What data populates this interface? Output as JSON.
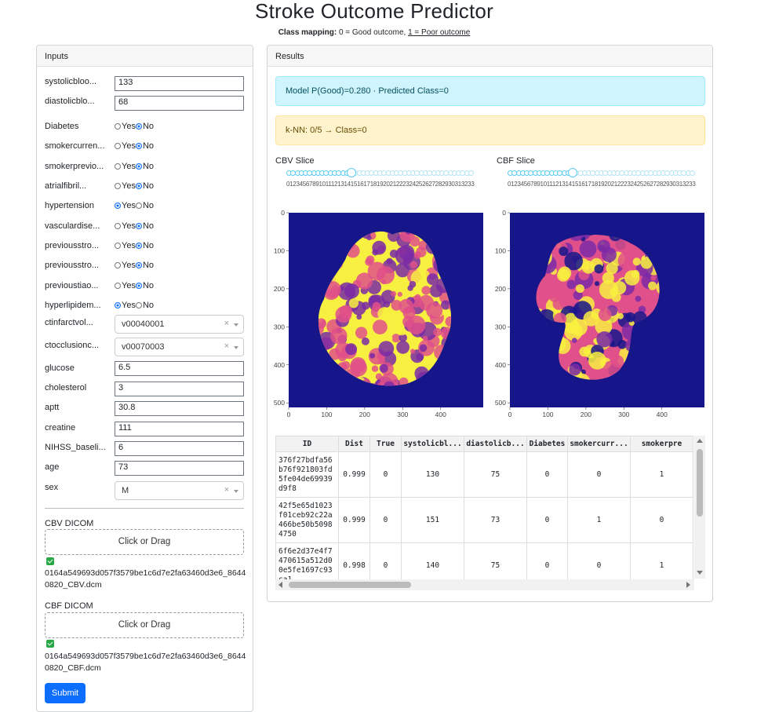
{
  "page": {
    "title": "Stroke Outcome Predictor",
    "mapping_bold": "Class mapping:",
    "mapping_normal": " 0 = Good outcome, ",
    "mapping_link": "1 = Poor outcome"
  },
  "inputs": {
    "header": "Inputs",
    "systolic": {
      "label": "systolicbloo...",
      "value": "133"
    },
    "diastolic": {
      "label": "diastolicblo...",
      "value": "68"
    },
    "radios": [
      {
        "label": "Diabetes",
        "selected": "No"
      },
      {
        "label": "smokercurren...",
        "selected": "No"
      },
      {
        "label": "smokerprevio...",
        "selected": "No"
      },
      {
        "label": "atrialfibril...",
        "selected": "No"
      },
      {
        "label": "hypertension",
        "selected": "Yes"
      },
      {
        "label": "vasculardise...",
        "selected": "No"
      },
      {
        "label": "previousstro...",
        "selected": "No"
      },
      {
        "label": "previousstro...",
        "selected": "No"
      },
      {
        "label": "previoustiao...",
        "selected": "No"
      },
      {
        "label": "hyperlipidem...",
        "selected": "Yes"
      }
    ],
    "radio_yes": "Yes",
    "radio_no": "No",
    "ctinfarct": {
      "label": "ctinfarctvol...",
      "value": "v00040001"
    },
    "ctocclusion": {
      "label": "ctocclusionc...",
      "value": "v00070003"
    },
    "glucose": {
      "label": "glucose",
      "value": "6.5"
    },
    "cholesterol": {
      "label": "cholesterol",
      "value": "3"
    },
    "aptt": {
      "label": "aptt",
      "value": "30.8"
    },
    "creatine": {
      "label": "creatine",
      "value": "111"
    },
    "nihss": {
      "label": "NIHSS_baseli...",
      "value": "6"
    },
    "age": {
      "label": "age",
      "value": "73"
    },
    "sex": {
      "label": "sex",
      "value": "M"
    },
    "clear_symbol": "×",
    "cbv_label": "CBV DICOM",
    "cbf_label": "CBF DICOM",
    "drop_text": "Click or Drag",
    "cbv_file": "0164a549693d057f3579be1c6d7e2fa63460d3e6_86440820_CBV.dcm",
    "cbf_file": "0164a549693d057f3579be1c6d7e2fa63460d3e6_86440820_CBF.dcm",
    "submit": "Submit"
  },
  "results": {
    "header": "Results",
    "model_text": "Model P(Good)=0.280 · Predicted Class=0",
    "knn_text": "k-NN: 0/5 → Class=0",
    "cbv_title": "CBV Slice",
    "cbf_title": "CBF Slice",
    "slider_marks": "0123456789101112131415161718192021222324252627282930313233343536373839404142434",
    "slider_value": 15,
    "axis_ticks_x": [
      "0",
      "100",
      "200",
      "300",
      "400"
    ],
    "axis_ticks_y": [
      "0",
      "100",
      "200",
      "300",
      "400",
      "500"
    ],
    "colors": {
      "background": "#16168a",
      "low": "#7a2aa6",
      "mid": "#e0508a",
      "high": "#f8f040"
    },
    "table": {
      "columns": [
        "ID",
        "Dist",
        "True",
        "systolicbl...",
        "diastolicb...",
        "Diabetes",
        "smokercurr...",
        "smokerpre"
      ],
      "rows": [
        [
          "376f27bdfa56b76f921803fd5fe04de69939d9f8",
          "0.999",
          "0",
          "130",
          "75",
          "0",
          "0",
          "1"
        ],
        [
          "42f5e65d1023f01ceb92c22a466be50b50984750",
          "0.999",
          "0",
          "151",
          "73",
          "0",
          "1",
          "0"
        ],
        [
          "6f6e2d37e4f7470615a512d00e5fe1697c93ca1",
          "0.998",
          "0",
          "140",
          "75",
          "0",
          "0",
          "1"
        ]
      ]
    }
  }
}
